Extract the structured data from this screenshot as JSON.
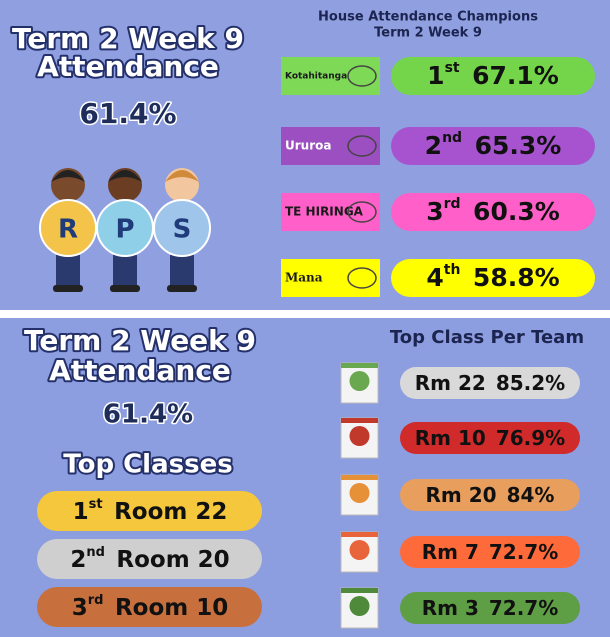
{
  "top": {
    "title_line1": "Term 2 Week 9",
    "title_line2": "Attendance",
    "overall": "61.4%",
    "logo_letters": [
      "R",
      "P",
      "S"
    ],
    "house_title": "House Attendance Champions",
    "house_subtitle": "Term 2 Week 9",
    "houses": [
      {
        "name": "Kotahitanga",
        "rank": "1",
        "suffix": "st",
        "percent": "67.1%"
      },
      {
        "name": "Ururoa",
        "rank": "2",
        "suffix": "nd",
        "percent": "65.3%"
      },
      {
        "name": "TE HIRINGA",
        "rank": "3",
        "suffix": "rd",
        "percent": "60.3%"
      },
      {
        "name": "Mana",
        "rank": "4",
        "suffix": "th",
        "percent": "58.8%"
      }
    ]
  },
  "bottom": {
    "title_line1": "Term 2 Week 9",
    "title_line2": "Attendance",
    "overall": "61.4%",
    "top_classes_title": "Top Classes",
    "top_classes": [
      {
        "rank": "1",
        "suffix": "st",
        "room": "Room 22"
      },
      {
        "rank": "2",
        "suffix": "nd",
        "room": "Room 20"
      },
      {
        "rank": "3",
        "suffix": "rd",
        "room": "Room 10"
      }
    ],
    "team_title": "Top Class Per Team",
    "teams": [
      {
        "room": "Rm 22",
        "percent": "85.2%"
      },
      {
        "room": "Rm 10",
        "percent": "76.9%"
      },
      {
        "room": "Rm 20",
        "percent": "84%"
      },
      {
        "room": "Rm 7",
        "percent": "72.7%"
      },
      {
        "room": "Rm 3",
        "percent": "72.7%"
      }
    ]
  }
}
